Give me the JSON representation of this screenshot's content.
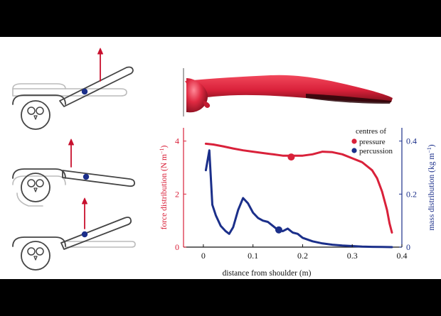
{
  "colors": {
    "pressure": "#d9213a",
    "percussion": "#1b2f8a",
    "force_axis": "#d9213a",
    "mass_axis": "#1b2f8a",
    "arrow": "#c8102e",
    "outline": "#444444"
  },
  "wing_views": {
    "count": 3,
    "icons": [
      "bird-head-icon",
      "force-arrow-icon",
      "centre-of-pressure-dot-icon"
    ]
  },
  "legend": {
    "title": "centres of",
    "pressure": "pressure",
    "percussion": "percussion"
  },
  "chart_data": {
    "type": "line",
    "xlabel": "distance from shoulder (m)",
    "ylabel_left": "force distribution (N m",
    "ylabel_right": "mass distribution (kg m",
    "ylabel_sup": "−1",
    "ylabel_close": ")",
    "xlim": [
      -0.04,
      0.4
    ],
    "ylim_left": [
      0,
      4.5
    ],
    "ylim_right": [
      0,
      0.45
    ],
    "xticks": [
      "0",
      "0.1",
      "0.2",
      "0.3",
      "0.4"
    ],
    "yticks_left": [
      "0",
      "2",
      "4"
    ],
    "yticks_right": [
      "0",
      "0.2",
      "0.4"
    ],
    "series": [
      {
        "name": "force distribution",
        "axis": "left",
        "x": [
          0.005,
          0.02,
          0.04,
          0.06,
          0.08,
          0.1,
          0.12,
          0.14,
          0.16,
          0.18,
          0.2,
          0.22,
          0.24,
          0.26,
          0.28,
          0.3,
          0.32,
          0.34,
          0.35,
          0.36,
          0.37,
          0.375,
          0.38
        ],
        "y": [
          3.9,
          3.87,
          3.8,
          3.72,
          3.65,
          3.6,
          3.55,
          3.5,
          3.45,
          3.45,
          3.45,
          3.5,
          3.6,
          3.58,
          3.5,
          3.35,
          3.2,
          2.9,
          2.6,
          2.1,
          1.4,
          0.9,
          0.55
        ]
      },
      {
        "name": "mass distribution",
        "axis": "right",
        "x": [
          0.005,
          0.012,
          0.018,
          0.025,
          0.035,
          0.045,
          0.052,
          0.06,
          0.07,
          0.08,
          0.09,
          0.1,
          0.11,
          0.12,
          0.13,
          0.14,
          0.15,
          0.16,
          0.17,
          0.18,
          0.19,
          0.2,
          0.22,
          0.24,
          0.26,
          0.28,
          0.3,
          0.32,
          0.34,
          0.36,
          0.38
        ],
        "y": [
          0.29,
          0.365,
          0.16,
          0.12,
          0.08,
          0.06,
          0.05,
          0.075,
          0.14,
          0.185,
          0.165,
          0.13,
          0.11,
          0.1,
          0.095,
          0.08,
          0.065,
          0.06,
          0.07,
          0.055,
          0.05,
          0.035,
          0.022,
          0.014,
          0.009,
          0.006,
          0.004,
          0.002,
          0.001,
          0.0005,
          0.0
        ]
      }
    ],
    "markers": [
      {
        "name": "centre of pressure",
        "x": 0.177,
        "y": 3.4,
        "axis": "left"
      },
      {
        "name": "centre of percussion",
        "x": 0.152,
        "y": 0.065,
        "axis": "right"
      }
    ]
  }
}
